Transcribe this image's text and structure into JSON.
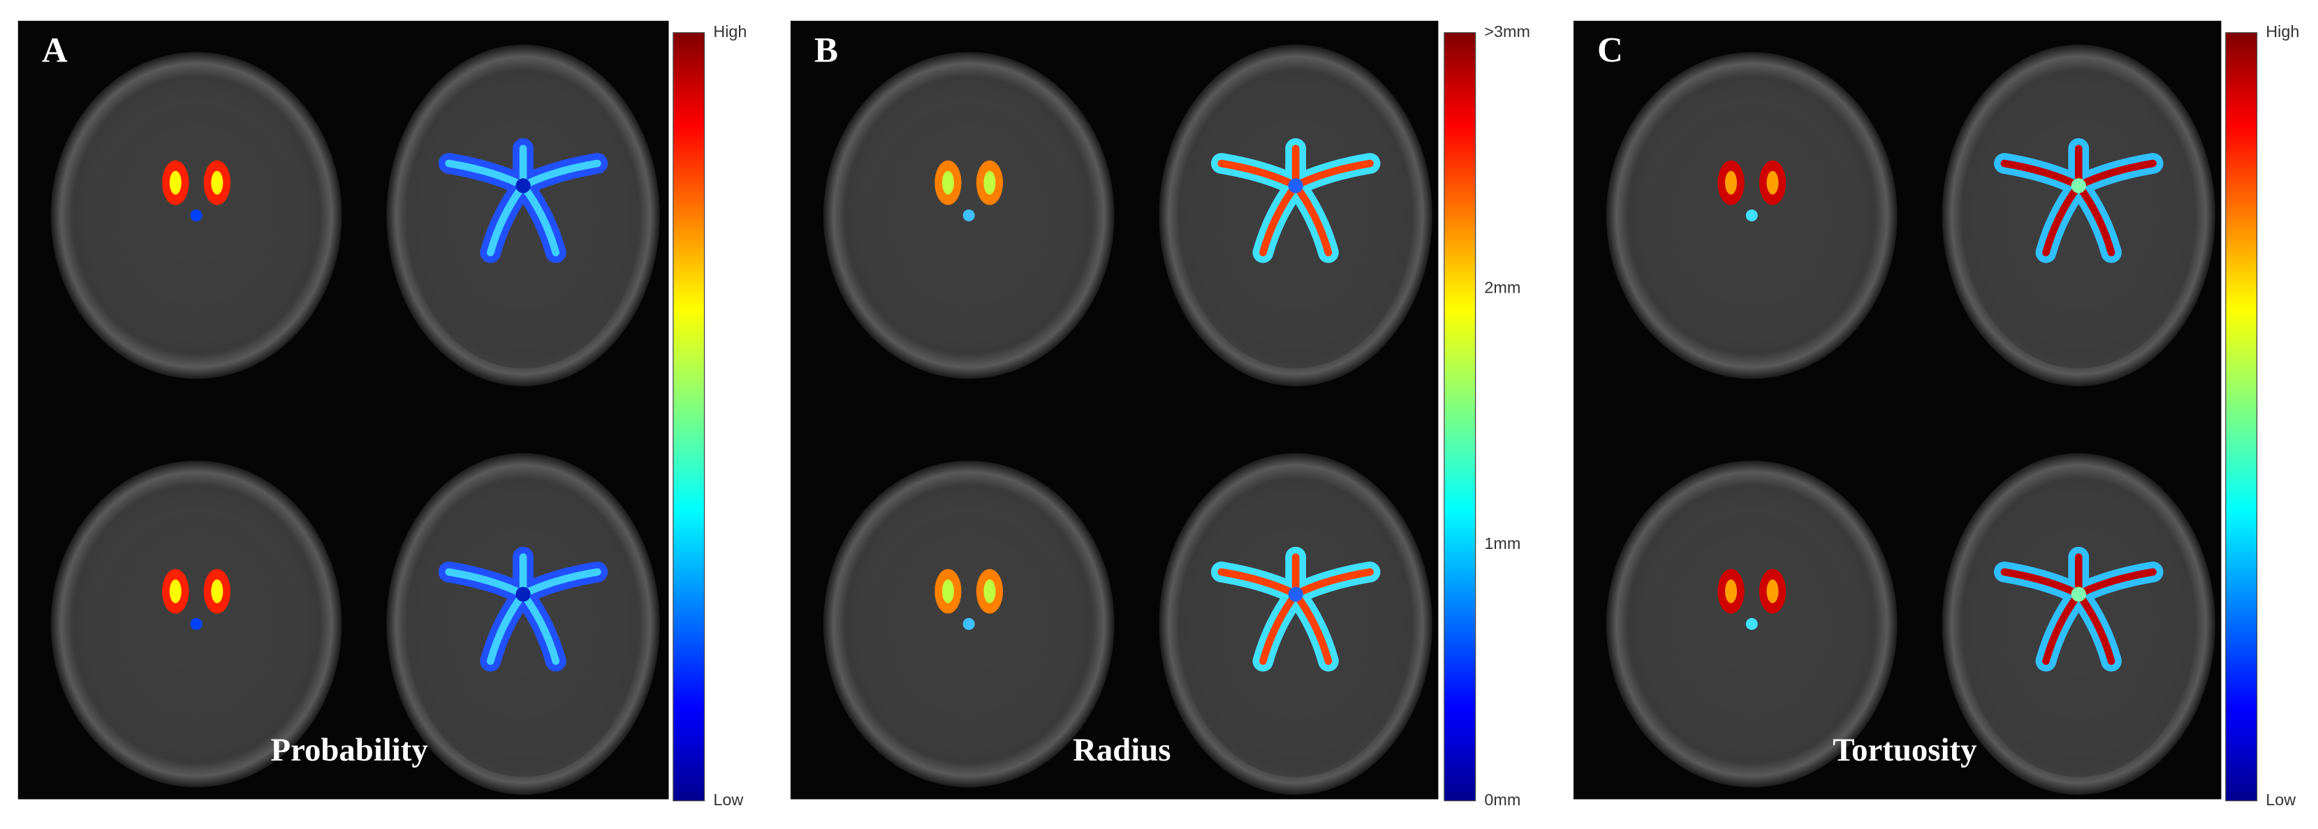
{
  "panels": [
    {
      "label": "A",
      "caption": "Probability",
      "colorbar_labels": [
        "High",
        "Low"
      ]
    },
    {
      "label": "B",
      "caption": "Radius",
      "colorbar_labels": [
        ">3mm",
        "2mm",
        "1mm",
        "0mm"
      ]
    },
    {
      "label": "C",
      "caption": "Tortuosity",
      "colorbar_labels": [
        "High",
        "Low"
      ]
    }
  ]
}
